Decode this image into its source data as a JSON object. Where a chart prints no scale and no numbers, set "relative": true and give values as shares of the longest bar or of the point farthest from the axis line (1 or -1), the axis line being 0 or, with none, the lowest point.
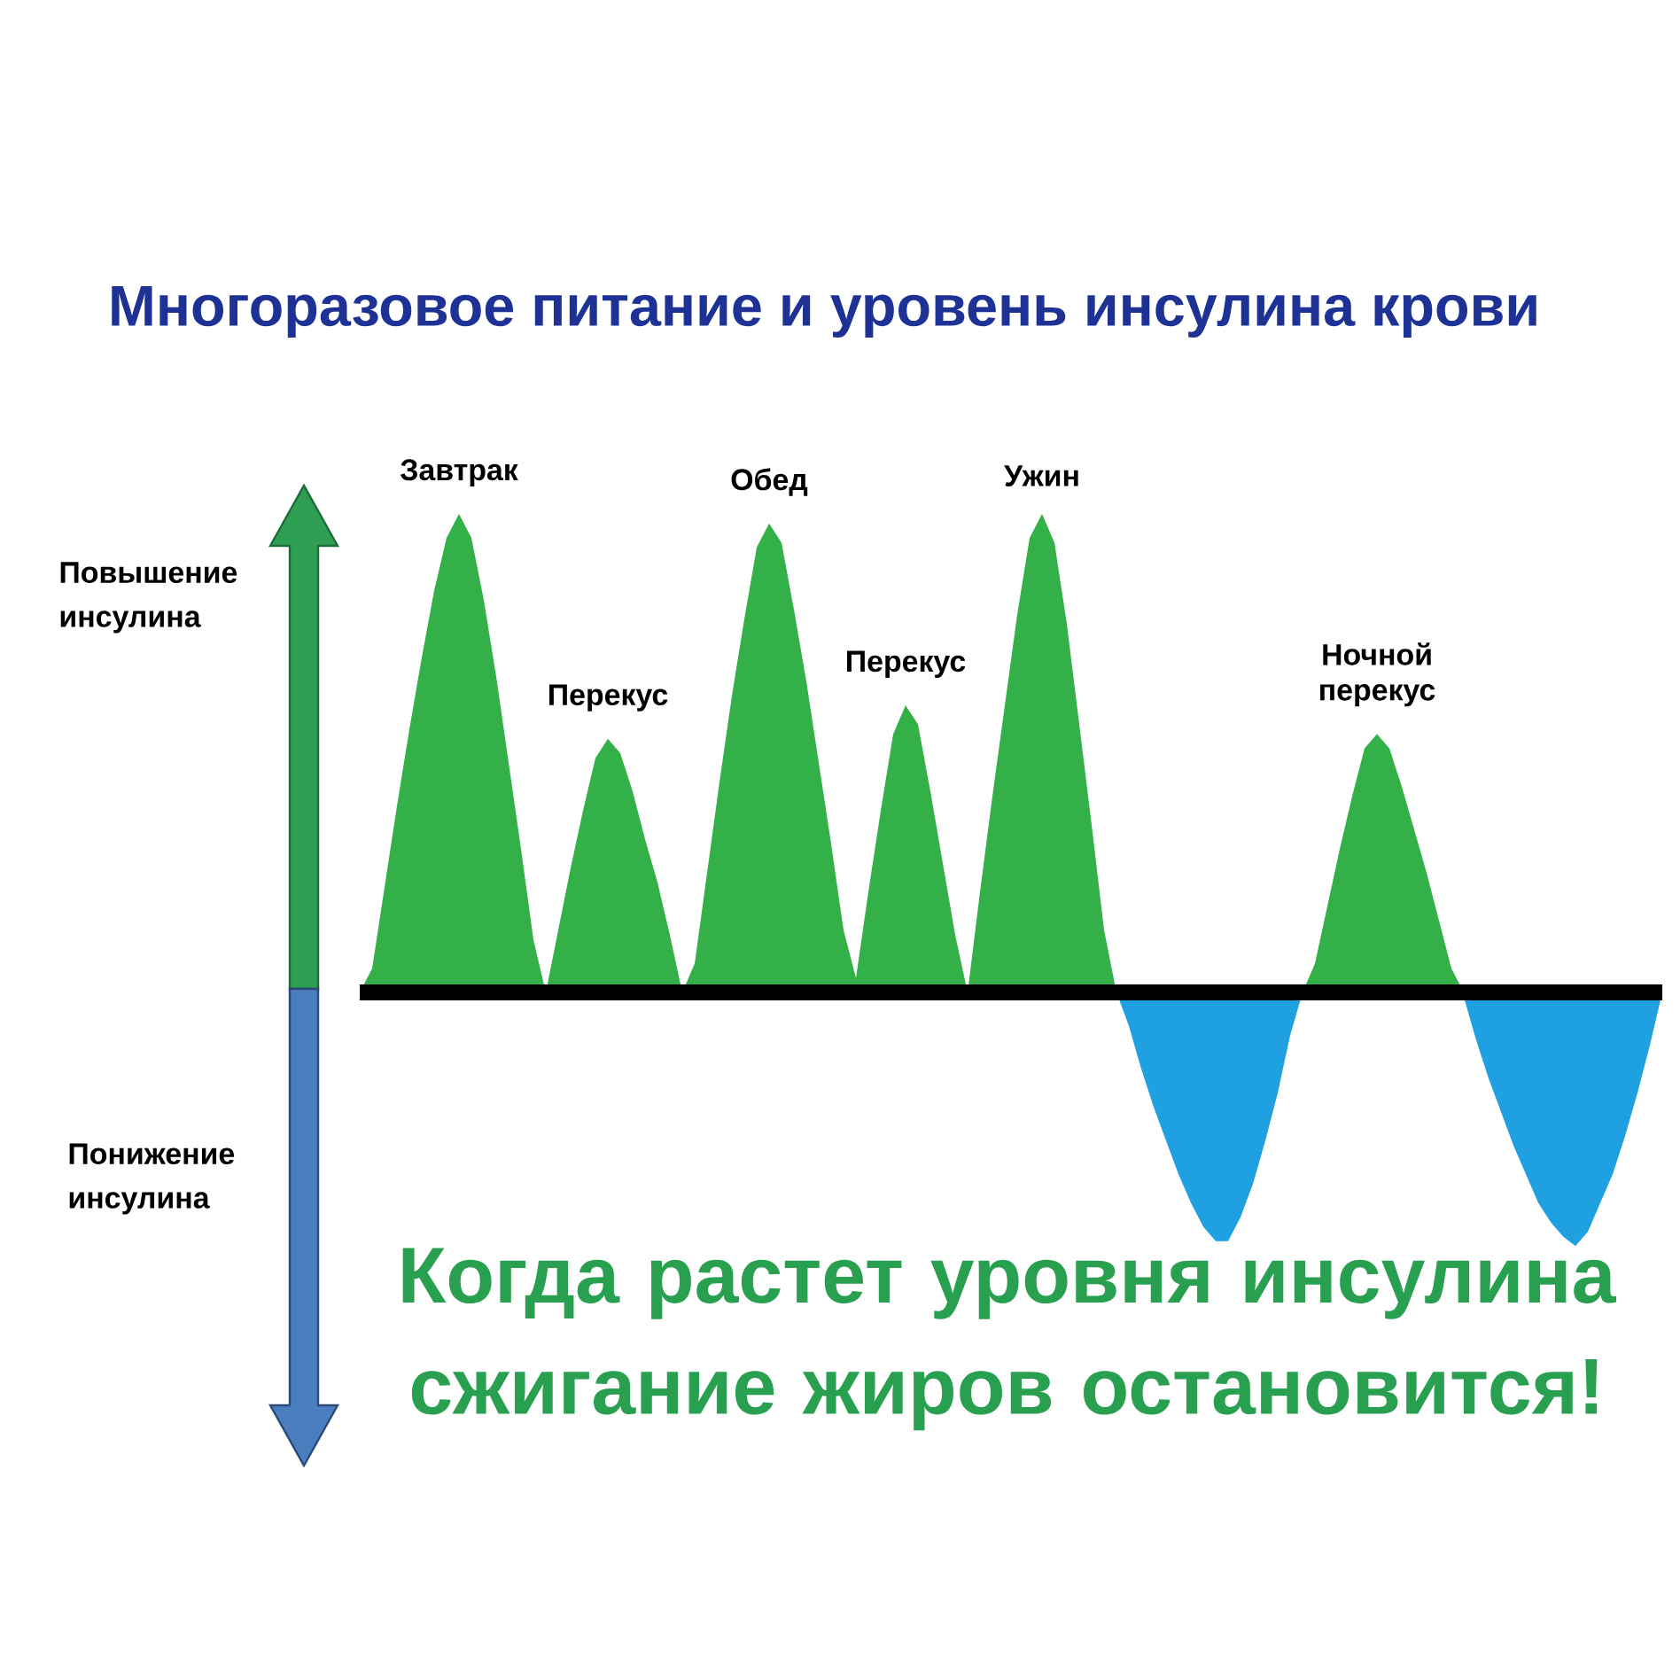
{
  "chart_data": {
    "type": "area",
    "title": "Многоразовое питание и уровень инсулина крови",
    "relative": true,
    "categories": [
      null,
      null,
      null,
      null,
      null,
      null,
      null,
      null,
      null,
      null,
      null,
      null,
      null,
      null,
      null,
      null,
      null,
      null,
      null,
      null,
      null,
      null,
      null,
      null,
      null,
      null,
      null,
      null,
      null,
      null,
      null,
      null,
      null,
      null,
      null,
      null,
      null,
      null,
      null,
      null,
      null,
      null,
      null,
      null,
      null,
      null,
      null,
      null,
      null,
      null,
      null,
      null,
      null,
      null,
      null,
      null,
      null,
      null,
      null,
      null,
      null,
      null,
      null,
      null,
      null,
      null,
      null,
      null,
      null,
      null,
      null,
      null,
      null,
      null,
      null,
      null,
      null,
      null,
      null,
      null,
      null,
      null,
      null,
      null,
      null,
      null,
      null,
      null,
      null,
      null,
      null,
      null,
      null,
      null,
      null,
      null,
      null,
      null,
      null,
      null,
      null,
      null,
      null,
      null,
      null,
      null
    ],
    "series": [
      {
        "color": "#34b048",
        "values": [
          0,
          0.05,
          0.22,
          0.39,
          0.55,
          0.7,
          0.84,
          0.95,
          1.0,
          0.95,
          0.82,
          0.66,
          0.48,
          0.3,
          0.11,
          0,
          0.13,
          0.26,
          0.38,
          0.49,
          0.53,
          0.5,
          0.42,
          0.32,
          0.23,
          0.12,
          0,
          0.06,
          0.25,
          0.44,
          0.62,
          0.78,
          0.93,
          0.98,
          0.94,
          0.8,
          0.65,
          0.48,
          0.31,
          0.13,
          0.03,
          0.21,
          0.38,
          0.54,
          0.6,
          0.56,
          0.42,
          0.27,
          0.12,
          0,
          0.21,
          0.41,
          0.6,
          0.79,
          0.95,
          1.0,
          0.94,
          0.77,
          0.56,
          0.35,
          0.13,
          0,
          0,
          0,
          0,
          0,
          0,
          0,
          0,
          0,
          0,
          0,
          0,
          0,
          0,
          0,
          0,
          0.06,
          0.18,
          0.3,
          0.41,
          0.51,
          0.54,
          0.51,
          0.43,
          0.34,
          0.25,
          0.15,
          0.05,
          0,
          0,
          0,
          0,
          0,
          0,
          0,
          0,
          0,
          0,
          0,
          0,
          0,
          0,
          0,
          0,
          0
        ]
      },
      {
        "color": "#1ea0e1",
        "values": [
          0,
          0,
          0,
          0,
          0,
          0,
          0,
          0,
          0,
          0,
          0,
          0,
          0,
          0,
          0,
          0,
          0,
          0,
          0,
          0,
          0,
          0,
          0,
          0,
          0,
          0,
          0,
          0,
          0,
          0,
          0,
          0,
          0,
          0,
          0,
          0,
          0,
          0,
          0,
          0,
          0,
          0,
          0,
          0,
          0,
          0,
          0,
          0,
          0,
          0,
          0,
          0,
          0,
          0,
          0,
          0,
          0,
          0,
          0,
          0,
          0,
          0,
          -0.07,
          -0.16,
          -0.24,
          -0.31,
          -0.38,
          -0.44,
          -0.49,
          -0.52,
          -0.52,
          -0.47,
          -0.4,
          -0.31,
          -0.21,
          -0.09,
          0,
          0,
          0,
          0,
          0,
          0,
          0,
          0,
          0,
          0,
          0,
          0,
          0,
          -0.01,
          -0.1,
          -0.18,
          -0.25,
          -0.32,
          -0.38,
          -0.44,
          -0.48,
          -0.51,
          -0.53,
          -0.5,
          -0.44,
          -0.38,
          -0.3,
          -0.21,
          -0.11,
          0
        ]
      }
    ],
    "annotations": [
      "Повышение инсулина",
      {
        "text": "Завтрак",
        "y": 1.0
      },
      {
        "text": "Перекус",
        "y": 0.53
      },
      {
        "text": "Обед",
        "y": 0.98
      },
      {
        "text": "Перекус",
        "y": 0.6
      },
      {
        "text": "Ужин",
        "y": 1.0
      },
      {
        "text": "Ночной перекус",
        "y": 0.54
      },
      "Понижение инсулина",
      "Когда растет уровня инсулина сжигание жиров остановится!"
    ]
  }
}
